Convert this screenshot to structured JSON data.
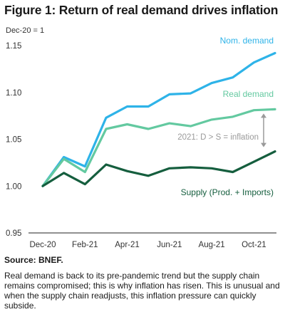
{
  "figure": {
    "title": "Figure 1: Return of real demand drives inflation",
    "source": "Source: BNEF.",
    "note": "Real demand is back to its pre-pandemic trend but the supply chain remains compromised; this is why inflation has risen. This is unusual and when the supply chain readjusts, this inflation pressure can quickly subside."
  },
  "chart_data": {
    "type": "line",
    "ylabel": "Dec-20 = 1",
    "ylim": [
      0.95,
      1.17
    ],
    "yticks": [
      "0.95",
      "1.00",
      "1.05",
      "1.10",
      "1.15"
    ],
    "x": [
      "Dec-20",
      "Jan-21",
      "Feb-21",
      "Mar-21",
      "Apr-21",
      "May-21",
      "Jun-21",
      "Jul-21",
      "Aug-21",
      "Sep-21",
      "Oct-21",
      "Nov-21"
    ],
    "xtick_labels": [
      "Dec-20",
      "Feb-21",
      "Apr-21",
      "Jun-21",
      "Aug-21",
      "Oct-21"
    ],
    "grid": false,
    "series": [
      {
        "name": "Nom. demand",
        "color": "#2eb3e8",
        "values": [
          1.0,
          1.031,
          1.021,
          1.073,
          1.085,
          1.085,
          1.098,
          1.099,
          1.11,
          1.116,
          1.132,
          1.142
        ]
      },
      {
        "name": "Real demand",
        "color": "#63c9a0",
        "values": [
          1.0,
          1.029,
          1.015,
          1.061,
          1.066,
          1.061,
          1.067,
          1.064,
          1.071,
          1.074,
          1.081,
          1.082
        ]
      },
      {
        "name": "Supply (Prod. + Imports)",
        "color": "#155e3e",
        "values": [
          1.0,
          1.014,
          1.002,
          1.023,
          1.016,
          1.011,
          1.019,
          1.02,
          1.019,
          1.015,
          1.026,
          1.037
        ]
      }
    ],
    "annotation": {
      "text": "2021: D > S = inflation",
      "arrow_from": 1.082,
      "arrow_to": 1.037,
      "color": "#9a9a9a"
    }
  }
}
